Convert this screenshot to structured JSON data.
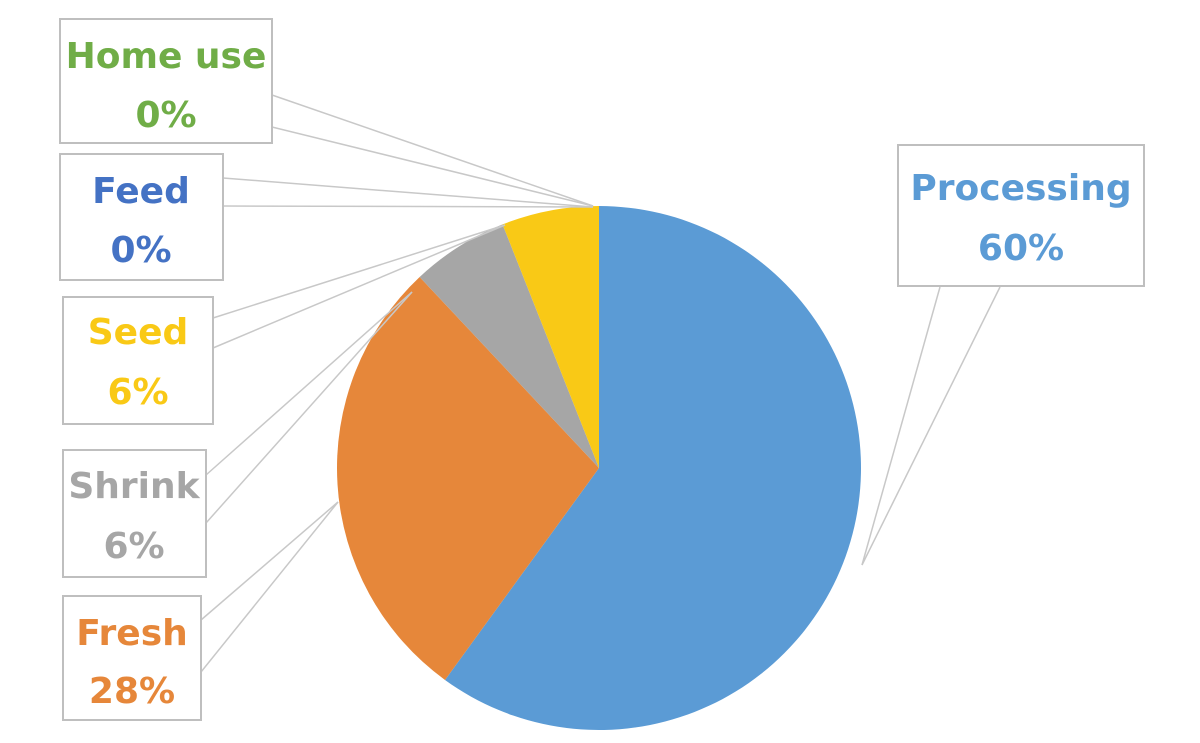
{
  "chart_data": {
    "type": "pie",
    "title": "",
    "slices": [
      {
        "name": "Processing",
        "label_value": "60%",
        "value": 60,
        "color": "#5b9bd5"
      },
      {
        "name": "Fresh",
        "label_value": "28%",
        "value": 28,
        "color": "#e6873a"
      },
      {
        "name": "Shrink",
        "label_value": "6%",
        "value": 6,
        "color": "#a6a6a6"
      },
      {
        "name": "Seed",
        "label_value": "6%",
        "value": 6,
        "color": "#f9c916"
      },
      {
        "name": "Feed",
        "label_value": "0%",
        "value": 0,
        "color": "#4472c4"
      },
      {
        "name": "Home use",
        "label_value": "0%",
        "value": 0,
        "color": "#70ad47"
      }
    ],
    "start": "12 o'clock",
    "direction": "clockwise",
    "legend": "none",
    "data_labels": "callouts"
  }
}
